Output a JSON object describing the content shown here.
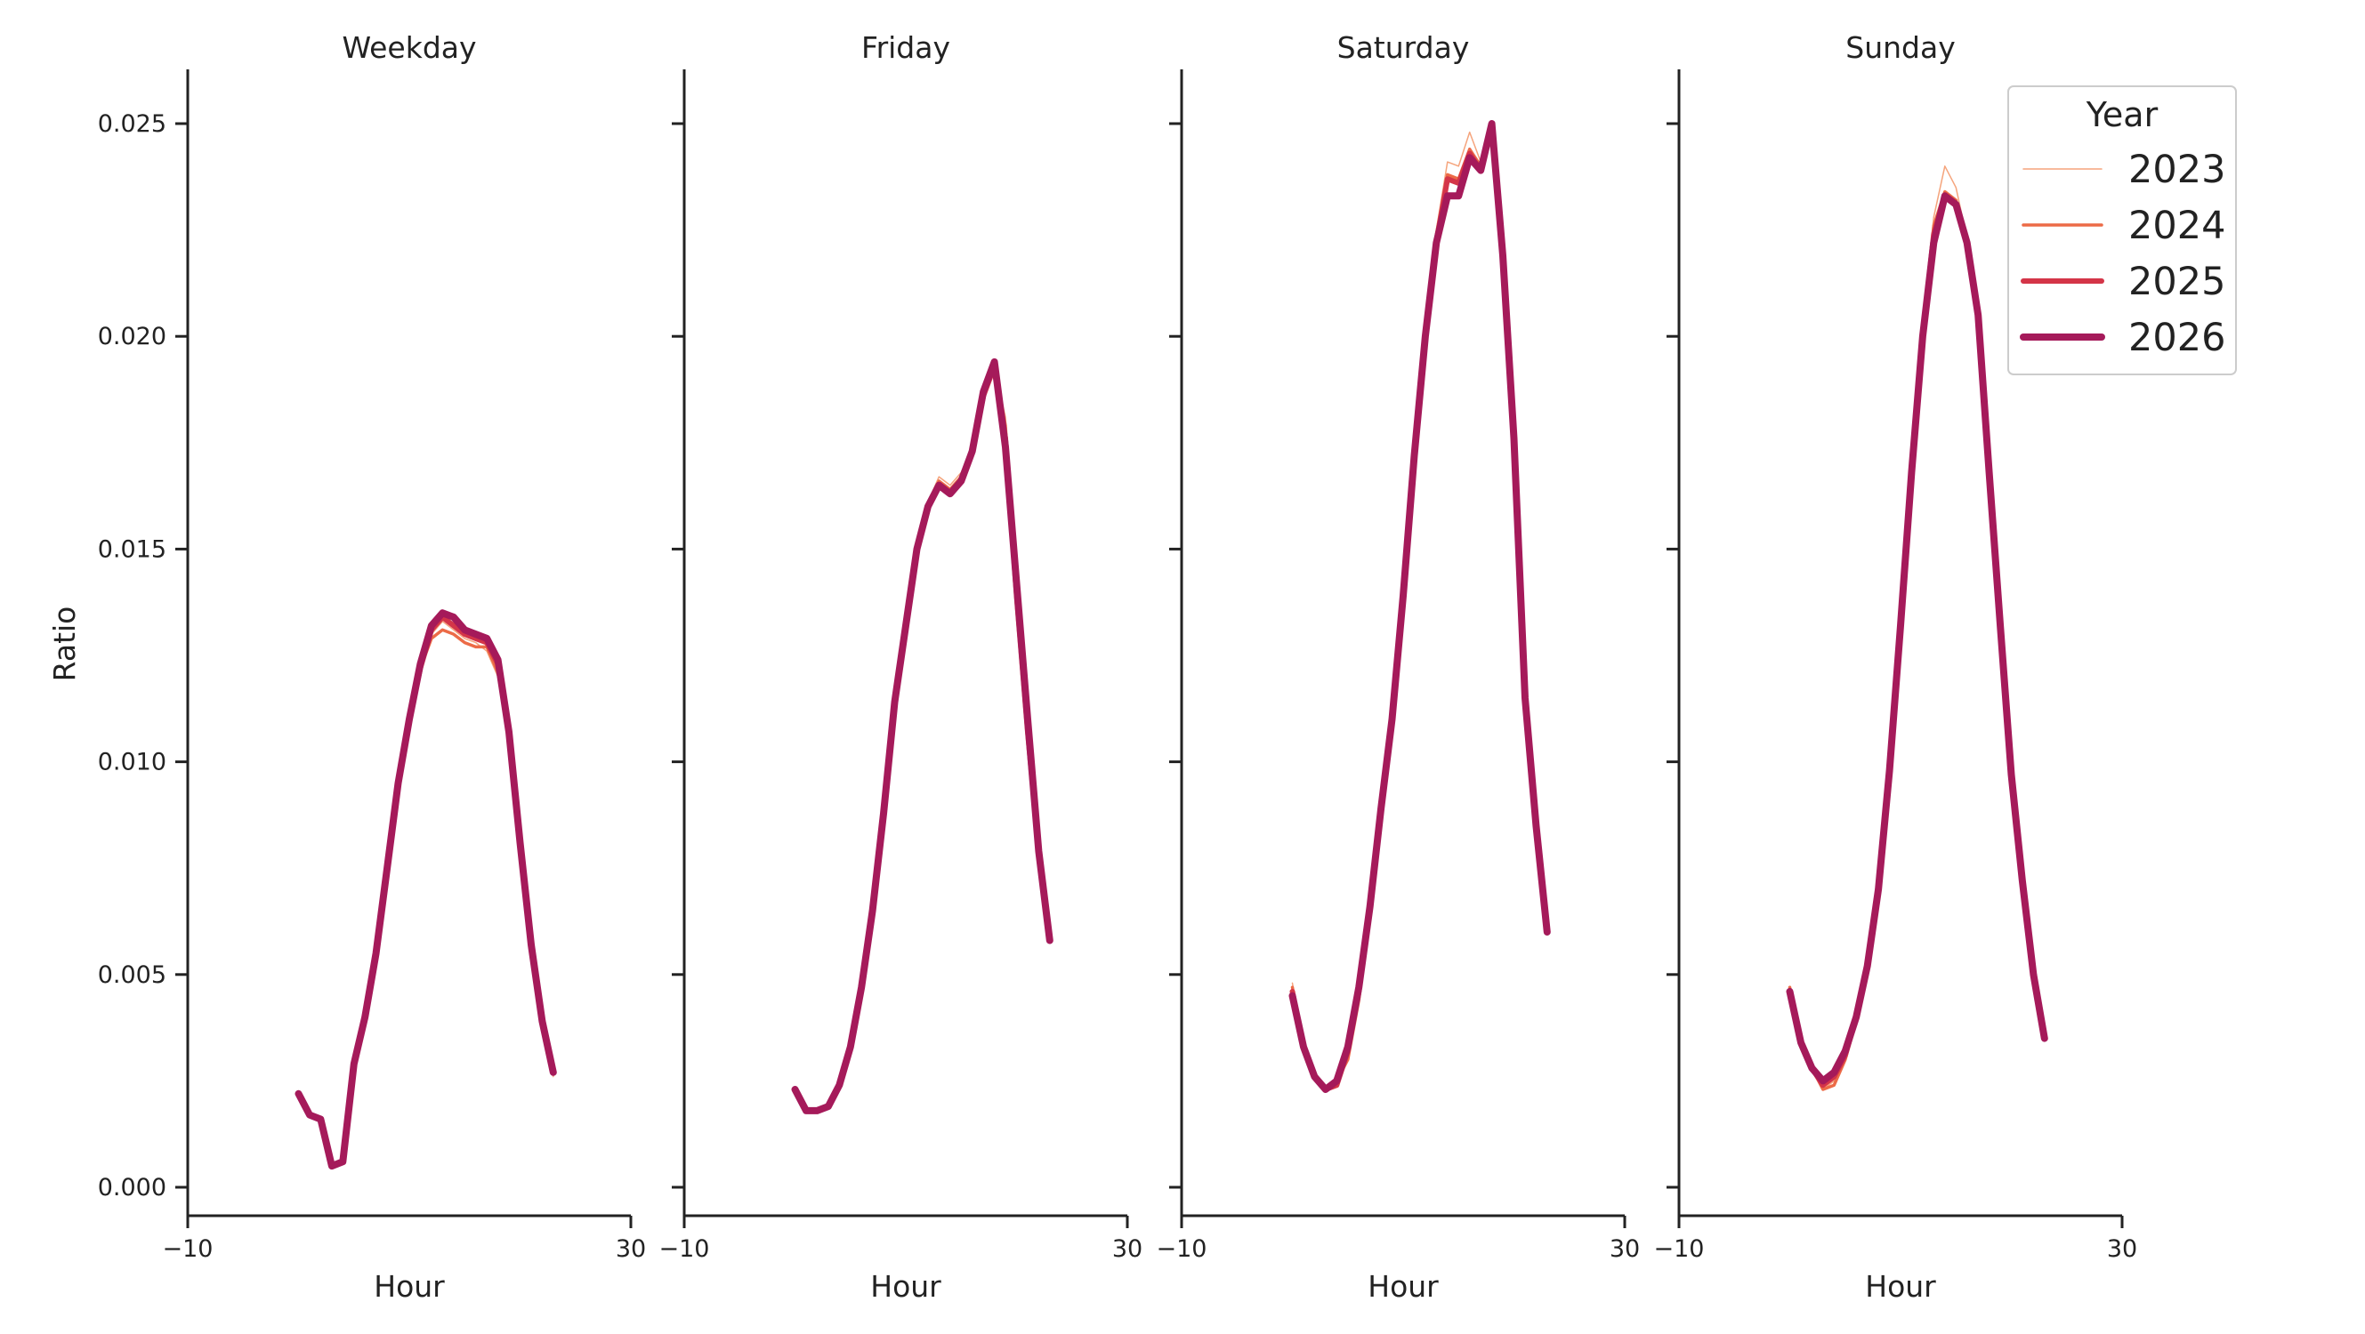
{
  "chart_data": {
    "type": "line",
    "ylabel": "Ratio",
    "ylim": [
      -0.0007,
      0.0263
    ],
    "yticks": [
      {
        "value": 0.0,
        "label": "0.000"
      },
      {
        "value": 0.005,
        "label": "0.005"
      },
      {
        "value": 0.01,
        "label": "0.010"
      },
      {
        "value": 0.015,
        "label": "0.015"
      },
      {
        "value": 0.02,
        "label": "0.020"
      },
      {
        "value": 0.025,
        "label": "0.025"
      }
    ],
    "xlim": [
      -10,
      30
    ],
    "xticks": [
      {
        "value": -10,
        "label": "−10"
      },
      {
        "value": 30,
        "label": "30"
      }
    ],
    "legend": {
      "title": "Year",
      "placement": "top-right",
      "entries": [
        {
          "label": "2023",
          "color": "#f5a47c",
          "width": 1.5
        },
        {
          "label": "2024",
          "color": "#ec6b47",
          "width": 3.5
        },
        {
          "label": "2025",
          "color": "#d43548",
          "width": 6
        },
        {
          "label": "2026",
          "color": "#a51a5a",
          "width": 8
        }
      ]
    },
    "panels": [
      {
        "title": "Weekday",
        "xlabel": "Hour",
        "series": [
          {
            "name": "2023",
            "x": [
              0,
              1,
              2,
              3,
              4,
              5,
              6,
              7,
              8,
              9,
              10,
              11,
              12,
              13,
              14,
              15,
              16,
              17,
              18,
              19,
              20,
              21,
              22,
              23
            ],
            "y": [
              0.0022,
              0.0017,
              0.0016,
              0.0005,
              0.0006,
              0.0029,
              0.004,
              0.0055,
              0.0075,
              0.0095,
              0.011,
              0.0122,
              0.013,
              0.0133,
              0.0131,
              0.0129,
              0.0128,
              0.0126,
              0.012,
              0.0105,
              0.0078,
              0.0055,
              0.0038,
              0.0026
            ]
          },
          {
            "name": "2024",
            "x": [
              0,
              1,
              2,
              3,
              4,
              5,
              6,
              7,
              8,
              9,
              10,
              11,
              12,
              13,
              14,
              15,
              16,
              17,
              18,
              19,
              20,
              21,
              22,
              23
            ],
            "y": [
              0.0022,
              0.0017,
              0.0016,
              0.0005,
              0.0006,
              0.0029,
              0.004,
              0.0055,
              0.0075,
              0.0095,
              0.011,
              0.0122,
              0.0129,
              0.0131,
              0.013,
              0.0128,
              0.0127,
              0.0127,
              0.0121,
              0.0106,
              0.0079,
              0.0056,
              0.0039,
              0.0027
            ]
          },
          {
            "name": "2025",
            "x": [
              0,
              1,
              2,
              3,
              4,
              5,
              6,
              7,
              8,
              9,
              10,
              11,
              12,
              13,
              14,
              15,
              16,
              17,
              18,
              19,
              20,
              21,
              22,
              23
            ],
            "y": [
              0.0022,
              0.0017,
              0.0016,
              0.0005,
              0.0006,
              0.0029,
              0.004,
              0.0055,
              0.0075,
              0.0095,
              0.011,
              0.0122,
              0.0131,
              0.0134,
              0.0132,
              0.013,
              0.0129,
              0.0128,
              0.0123,
              0.0107,
              0.008,
              0.0057,
              0.0039,
              0.0027
            ]
          },
          {
            "name": "2026",
            "x": [
              0,
              1,
              2,
              3,
              4,
              5,
              6,
              7,
              8,
              9,
              10,
              11,
              12,
              13,
              14,
              15,
              16,
              17,
              18,
              19,
              20,
              21,
              22,
              23
            ],
            "y": [
              0.0022,
              0.0017,
              0.0016,
              0.0005,
              0.0006,
              0.0029,
              0.004,
              0.0055,
              0.0075,
              0.0095,
              0.011,
              0.0123,
              0.0132,
              0.0135,
              0.0134,
              0.0131,
              0.013,
              0.0129,
              0.0124,
              0.0107,
              0.0081,
              0.0057,
              0.0039,
              0.0027
            ]
          }
        ]
      },
      {
        "title": "Friday",
        "xlabel": "Hour",
        "series": [
          {
            "name": "2023",
            "x": [
              0,
              1,
              2,
              3,
              4,
              5,
              6,
              7,
              8,
              9,
              10,
              11,
              12,
              13,
              14,
              15,
              16,
              17,
              18,
              19,
              20,
              21,
              22,
              23
            ],
            "y": [
              0.0023,
              0.0018,
              0.0018,
              0.0019,
              0.0024,
              0.0033,
              0.0047,
              0.0065,
              0.0088,
              0.0114,
              0.0132,
              0.015,
              0.0161,
              0.0167,
              0.0165,
              0.0168,
              0.0174,
              0.0187,
              0.0193,
              0.0181,
              0.0139,
              0.0107,
              0.0079,
              0.0058
            ]
          },
          {
            "name": "2024",
            "x": [
              0,
              1,
              2,
              3,
              4,
              5,
              6,
              7,
              8,
              9,
              10,
              11,
              12,
              13,
              14,
              15,
              16,
              17,
              18,
              19,
              20,
              21,
              22,
              23
            ],
            "y": [
              0.0023,
              0.0018,
              0.0018,
              0.0019,
              0.0024,
              0.0033,
              0.0047,
              0.0065,
              0.0088,
              0.0114,
              0.0132,
              0.015,
              0.016,
              0.0166,
              0.0164,
              0.0167,
              0.0173,
              0.0186,
              0.0193,
              0.0179,
              0.0139,
              0.0107,
              0.0079,
              0.0058
            ]
          },
          {
            "name": "2025",
            "x": [
              0,
              1,
              2,
              3,
              4,
              5,
              6,
              7,
              8,
              9,
              10,
              11,
              12,
              13,
              14,
              15,
              16,
              17,
              18,
              19,
              20,
              21,
              22,
              23
            ],
            "y": [
              0.0023,
              0.0018,
              0.0018,
              0.0019,
              0.0024,
              0.0033,
              0.0047,
              0.0065,
              0.0088,
              0.0114,
              0.0132,
              0.015,
              0.016,
              0.0165,
              0.0163,
              0.0166,
              0.0173,
              0.0186,
              0.0193,
              0.0176,
              0.0139,
              0.0107,
              0.0079,
              0.0058
            ]
          },
          {
            "name": "2026",
            "x": [
              0,
              1,
              2,
              3,
              4,
              5,
              6,
              7,
              8,
              9,
              10,
              11,
              12,
              13,
              14,
              15,
              16,
              17,
              18,
              19,
              20,
              21,
              22,
              23
            ],
            "y": [
              0.0023,
              0.0018,
              0.0018,
              0.0019,
              0.0024,
              0.0033,
              0.0047,
              0.0065,
              0.0088,
              0.0114,
              0.0132,
              0.015,
              0.016,
              0.0165,
              0.0163,
              0.0166,
              0.0173,
              0.0187,
              0.0194,
              0.0174,
              0.0142,
              0.011,
              0.0079,
              0.0058
            ]
          }
        ]
      },
      {
        "title": "Saturday",
        "xlabel": "Hour",
        "series": [
          {
            "name": "2023",
            "x": [
              0,
              1,
              2,
              3,
              4,
              5,
              6,
              7,
              8,
              9,
              10,
              11,
              12,
              13,
              14,
              15,
              16,
              17,
              18,
              19,
              20,
              21,
              22,
              23
            ],
            "y": [
              0.0048,
              0.0033,
              0.0026,
              0.0023,
              0.0025,
              0.0032,
              0.0046,
              0.0065,
              0.0088,
              0.011,
              0.0139,
              0.0172,
              0.0202,
              0.0225,
              0.0241,
              0.024,
              0.0248,
              0.0241,
              0.025,
              0.0222,
              0.0176,
              0.0115,
              0.0085,
              0.006
            ]
          },
          {
            "name": "2024",
            "x": [
              0,
              1,
              2,
              3,
              4,
              5,
              6,
              7,
              8,
              9,
              10,
              11,
              12,
              13,
              14,
              15,
              16,
              17,
              18,
              19,
              20,
              21,
              22,
              23
            ],
            "y": [
              0.0047,
              0.0033,
              0.0026,
              0.0023,
              0.0025,
              0.003,
              0.0044,
              0.0064,
              0.0088,
              0.011,
              0.0139,
              0.0172,
              0.0201,
              0.0224,
              0.0238,
              0.0237,
              0.0244,
              0.024,
              0.025,
              0.022,
              0.0176,
              0.0115,
              0.0085,
              0.006
            ]
          },
          {
            "name": "2025",
            "x": [
              0,
              1,
              2,
              3,
              4,
              5,
              6,
              7,
              8,
              9,
              10,
              11,
              12,
              13,
              14,
              15,
              16,
              17,
              18,
              19,
              20,
              21,
              22,
              23
            ],
            "y": [
              0.0046,
              0.0033,
              0.0026,
              0.0023,
              0.0024,
              0.0032,
              0.0046,
              0.0066,
              0.0089,
              0.011,
              0.0139,
              0.0172,
              0.02,
              0.0222,
              0.0237,
              0.0236,
              0.0243,
              0.0239,
              0.025,
              0.022,
              0.0176,
              0.0115,
              0.0085,
              0.006
            ]
          },
          {
            "name": "2026",
            "x": [
              0,
              1,
              2,
              3,
              4,
              5,
              6,
              7,
              8,
              9,
              10,
              11,
              12,
              13,
              14,
              15,
              16,
              17,
              18,
              19,
              20,
              21,
              22,
              23
            ],
            "y": [
              0.0045,
              0.0033,
              0.0026,
              0.0023,
              0.0025,
              0.0033,
              0.0047,
              0.0066,
              0.0089,
              0.011,
              0.0139,
              0.0172,
              0.02,
              0.0222,
              0.0233,
              0.0233,
              0.0242,
              0.0239,
              0.025,
              0.0219,
              0.0176,
              0.0115,
              0.0085,
              0.006
            ]
          }
        ]
      },
      {
        "title": "Sunday",
        "xlabel": "Hour",
        "series": [
          {
            "name": "2023",
            "x": [
              0,
              1,
              2,
              3,
              4,
              5,
              6,
              7,
              8,
              9,
              10,
              11,
              12,
              13,
              14,
              15,
              16,
              17,
              18,
              19,
              20,
              21,
              22,
              23
            ],
            "y": [
              0.0047,
              0.0034,
              0.0028,
              0.0023,
              0.0025,
              0.003,
              0.0039,
              0.0052,
              0.007,
              0.0098,
              0.0132,
              0.0168,
              0.0202,
              0.0228,
              0.024,
              0.0235,
              0.0223,
              0.0205,
              0.0168,
              0.0132,
              0.0097,
              0.0072,
              0.005,
              0.0035
            ]
          },
          {
            "name": "2024",
            "x": [
              0,
              1,
              2,
              3,
              4,
              5,
              6,
              7,
              8,
              9,
              10,
              11,
              12,
              13,
              14,
              15,
              16,
              17,
              18,
              19,
              20,
              21,
              22,
              23
            ],
            "y": [
              0.0047,
              0.0034,
              0.0028,
              0.0023,
              0.0024,
              0.003,
              0.0039,
              0.0052,
              0.007,
              0.0098,
              0.0132,
              0.0168,
              0.0201,
              0.0226,
              0.0234,
              0.0232,
              0.0222,
              0.0205,
              0.0168,
              0.0132,
              0.0097,
              0.0072,
              0.005,
              0.0035
            ]
          },
          {
            "name": "2025",
            "x": [
              0,
              1,
              2,
              3,
              4,
              5,
              6,
              7,
              8,
              9,
              10,
              11,
              12,
              13,
              14,
              15,
              16,
              17,
              18,
              19,
              20,
              21,
              22,
              23
            ],
            "y": [
              0.0046,
              0.0034,
              0.0028,
              0.0024,
              0.0026,
              0.0031,
              0.004,
              0.0052,
              0.007,
              0.0098,
              0.0132,
              0.0168,
              0.02,
              0.0224,
              0.0233,
              0.0231,
              0.0222,
              0.0205,
              0.0168,
              0.0132,
              0.0097,
              0.0072,
              0.005,
              0.0035
            ]
          },
          {
            "name": "2026",
            "x": [
              0,
              1,
              2,
              3,
              4,
              5,
              6,
              7,
              8,
              9,
              10,
              11,
              12,
              13,
              14,
              15,
              16,
              17,
              18,
              19,
              20,
              21,
              22,
              23
            ],
            "y": [
              0.0046,
              0.0034,
              0.0028,
              0.0025,
              0.0027,
              0.0032,
              0.004,
              0.0052,
              0.007,
              0.0098,
              0.0132,
              0.0168,
              0.02,
              0.0222,
              0.0233,
              0.0231,
              0.0222,
              0.0205,
              0.0168,
              0.0132,
              0.0097,
              0.0072,
              0.005,
              0.0035
            ]
          }
        ]
      }
    ]
  }
}
